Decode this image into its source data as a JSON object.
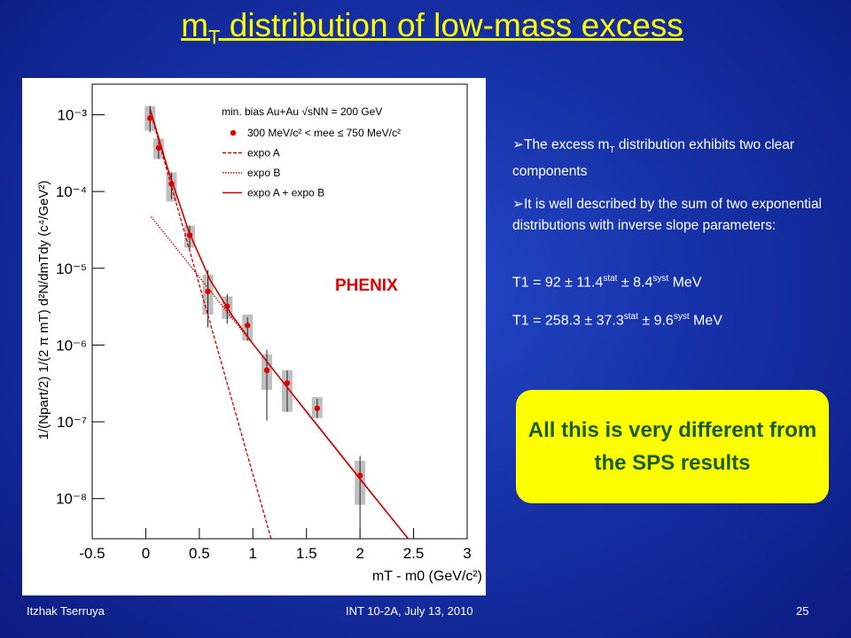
{
  "title": {
    "main": "m",
    "sub": "T",
    "rest": " distribution of low-mass excess"
  },
  "bullets": [
    [
      "The excess m",
      "T",
      " distribution exhibits two clear components"
    ],
    [
      "It is well described by the sum of two exponential distributions with inverse slope parameters:"
    ]
  ],
  "params": [
    [
      "T1 = 92 ± 11.4",
      "stat",
      " ± 8.4",
      "syst",
      " MeV"
    ],
    [
      "T1 = 258.3 ± 37.3",
      "stat",
      " ± 9.6",
      "syst",
      " MeV"
    ]
  ],
  "callout": "All this is very different from the SPS results",
  "footer": {
    "author": "Itzhak Tserruya",
    "event": "INT 10-2A, July 13, 2010",
    "page": "25"
  },
  "chart_data": {
    "type": "scatter",
    "legend_title": "min. bias Au+Au √sNN = 200 GeV",
    "annotation": "PHENIX",
    "x_label": "mT - m0 (GeV/c²)",
    "y_label": "1/(Npart/2) 1/(2 π mT) d²N/dmTdy (c⁴/GeV²)",
    "xlim": [
      -0.5,
      3
    ],
    "xticks": [
      -0.5,
      0,
      0.5,
      1,
      1.5,
      2,
      2.5,
      3
    ],
    "ylim": [
      3e-09,
      0.0025
    ],
    "yscale": "log",
    "yticks": [
      {
        "value": 0.001,
        "label": "10⁻³"
      },
      {
        "value": 0.0001,
        "label": "10⁻⁴"
      },
      {
        "value": 1e-05,
        "label": "10⁻⁵"
      },
      {
        "value": 1e-06,
        "label": "10⁻⁶"
      },
      {
        "value": 1e-07,
        "label": "10⁻⁷"
      },
      {
        "value": 1e-08,
        "label": "10⁻⁸"
      }
    ],
    "series": [
      {
        "name": "300 MeV/c² < mee ≤ 750 MeV/c²",
        "type": "scatter",
        "color": "#e00000",
        "x": [
          0.04,
          0.12,
          0.24,
          0.41,
          0.58,
          0.76,
          0.95,
          1.13,
          1.32,
          1.6,
          2.0
        ],
        "values": [
          0.0009,
          0.00037,
          0.000126,
          2.7e-05,
          5e-06,
          3.2e-06,
          1.8e-06,
          4.7e-07,
          3.2e-07,
          1.5e-07,
          2e-08
        ],
        "stat_low": [
          0.00059,
          0.000265,
          8e-05,
          1.76e-05,
          1.7e-06,
          1.9e-06,
          1.14e-06,
          1.04e-07,
          1.35e-07,
          1.12e-07,
          2e-09
        ],
        "stat_high": [
          0.0013,
          0.00051,
          0.000177,
          3.6e-05,
          9.5e-06,
          4.6e-06,
          2.3e-06,
          8.7e-07,
          4.7e-07,
          2e-07,
          3.6e-08
        ],
        "syst_low": [
          0.00062,
          0.000265,
          7.4e-05,
          1.85e-05,
          2.5e-06,
          2.2e-06,
          1.14e-06,
          2.6e-07,
          1.35e-07,
          1.12e-07,
          8.3e-09
        ],
        "syst_high": [
          0.0013,
          0.00049,
          0.000177,
          3.6e-05,
          8.3e-06,
          4.3e-06,
          2.5e-06,
          7.6e-07,
          4.7e-07,
          2.1e-07,
          3.1e-08
        ]
      },
      {
        "name": "expo A",
        "type": "line",
        "dash": "dashed",
        "color": "#d00000",
        "x": [
          0.04,
          1.17
        ],
        "values": [
          0.00114,
          3e-09
        ]
      },
      {
        "name": "expo B",
        "type": "line",
        "dash": "dotted",
        "color": "#d00000",
        "x": [
          0.05,
          2.45
        ],
        "values": [
          4.7e-05,
          3e-09
        ]
      },
      {
        "name": "expo A + expo B",
        "type": "line",
        "dash": "solid",
        "color": "#d00000",
        "x": [
          0.04,
          0.2,
          0.4,
          0.6,
          0.8,
          1.0,
          1.5,
          2.0,
          2.45
        ],
        "values": [
          0.00119,
          0.00021,
          3.05e-05,
          7.1e-06,
          2.5e-06,
          1.04e-06,
          1.35e-07,
          1.8e-08,
          3e-09
        ]
      }
    ]
  }
}
